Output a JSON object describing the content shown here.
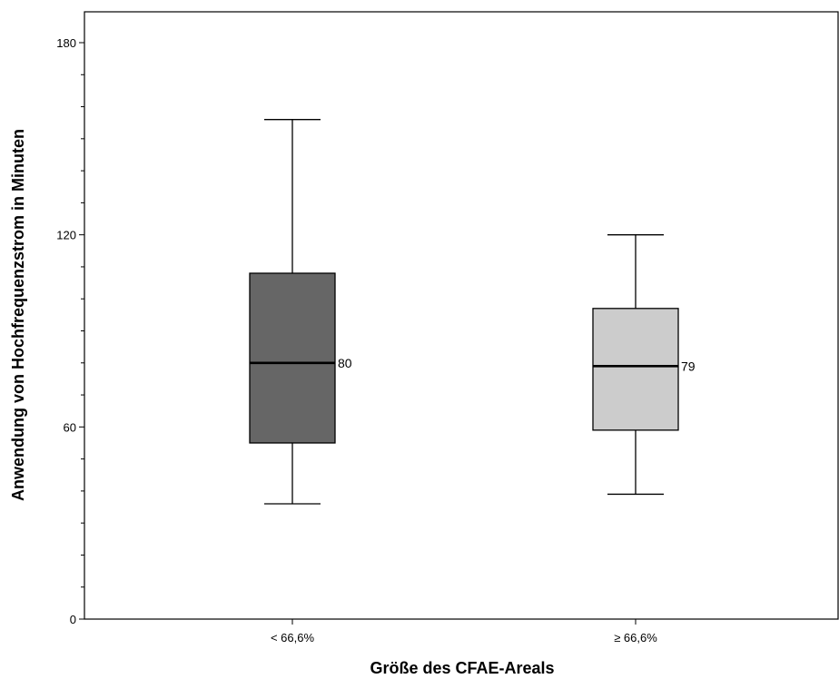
{
  "chart_data": {
    "type": "boxplot",
    "xlabel": "Größe des CFAE-Areals",
    "ylabel": "Anwendung von Hochfrequenzstrom in Minuten",
    "ylim": [
      0,
      190
    ],
    "yticks": [
      0,
      60,
      120,
      180
    ],
    "categories": [
      "< 66,6%",
      "≥ 66,6%"
    ],
    "boxes": [
      {
        "category": "< 66,6%",
        "whisker_low": 36,
        "q1": 55,
        "median": 80,
        "q3": 108,
        "whisker_high": 156,
        "median_label": "80",
        "color": "#666666"
      },
      {
        "category": "≥ 66,6%",
        "whisker_low": 39,
        "q1": 59,
        "median": 79,
        "q3": 97,
        "whisker_high": 120,
        "median_label": "79",
        "color": "#cccccc"
      }
    ]
  }
}
